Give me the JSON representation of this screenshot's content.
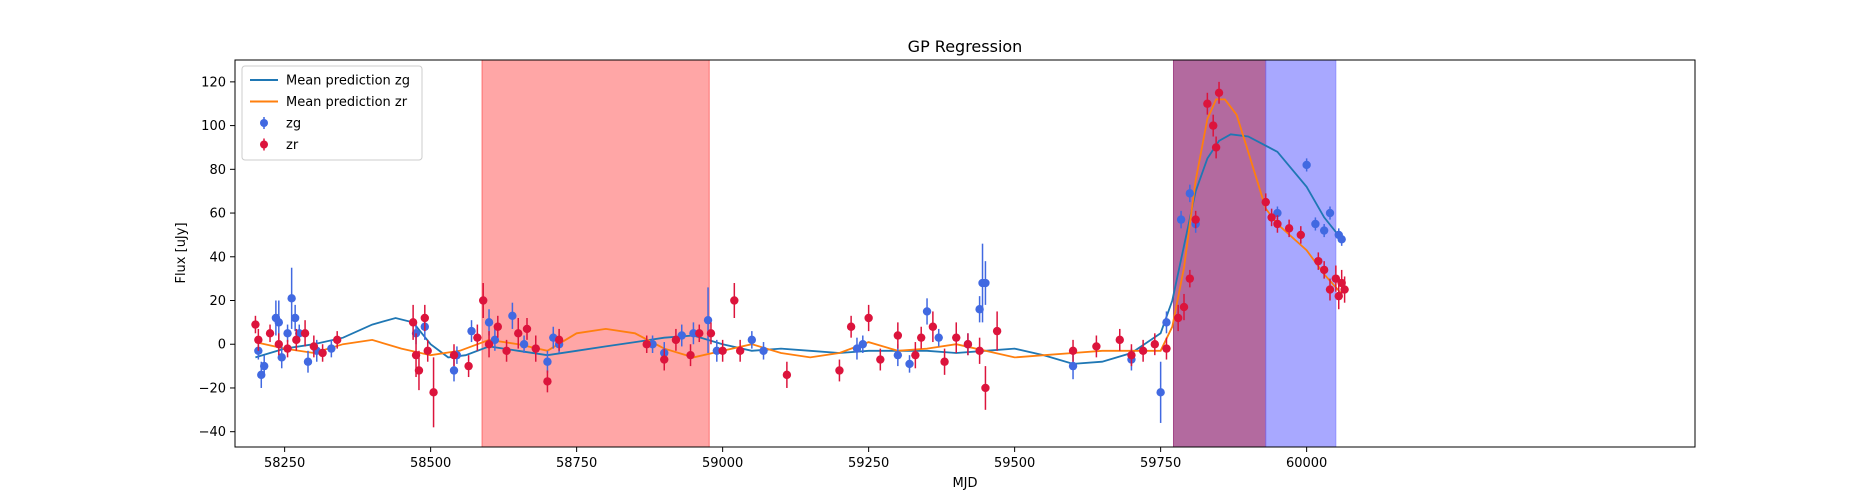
{
  "chart_data": {
    "type": "scatter",
    "title": "GP Regression",
    "xlabel": "MJD",
    "ylabel": "Flux [uJy]",
    "xlim": [
      58165,
      60665
    ],
    "ylim": [
      -47,
      130
    ],
    "xticks": [
      58250,
      58500,
      58750,
      59000,
      59250,
      59500,
      59750,
      60000
    ],
    "yticks": [
      -40,
      -20,
      0,
      20,
      40,
      60,
      80,
      100,
      120
    ],
    "legend_position": "top-left",
    "colors": {
      "zg": "#4169e1",
      "zr": "#dc143c",
      "mean_zg": "#1f77b4",
      "mean_zr": "#ff7f0e"
    },
    "shaded_regions": [
      {
        "x0": 58588,
        "x1": 58977,
        "color": "#ff4d4d",
        "opacity": 0.5
      },
      {
        "x0": 59772,
        "x1": 59930,
        "color": "#8b1a6b",
        "opacity": 0.65
      },
      {
        "x0": 59930,
        "x1": 60050,
        "color": "#7f7fff",
        "opacity": 0.68
      }
    ],
    "legend": [
      {
        "label": "Mean prediction zg",
        "kind": "line",
        "series": "mean_zg"
      },
      {
        "label": "Mean prediction zr",
        "kind": "line",
        "series": "mean_zr"
      },
      {
        "label": "zg",
        "kind": "errorbar",
        "series": "zg"
      },
      {
        "label": "zr",
        "kind": "errorbar",
        "series": "zr"
      }
    ],
    "series": [
      {
        "name": "Mean prediction zg",
        "kind": "line",
        "key": "mean_zg",
        "x": [
          58200,
          58250,
          58300,
          58350,
          58400,
          58440,
          58470,
          58500,
          58530,
          58560,
          58600,
          58650,
          58700,
          58750,
          58800,
          58850,
          58900,
          58950,
          59000,
          59050,
          59100,
          59150,
          59200,
          59250,
          59300,
          59350,
          59400,
          59450,
          59500,
          59550,
          59600,
          59650,
          59700,
          59750,
          59770,
          59790,
          59810,
          59830,
          59850,
          59870,
          59900,
          59950,
          60000,
          60030,
          60060
        ],
        "y": [
          -6,
          -2,
          0,
          3,
          9,
          12,
          10,
          0,
          -6,
          -5,
          -1,
          -3,
          -5,
          -3,
          -1,
          1,
          3,
          4,
          0,
          -3,
          -2,
          -3,
          -4,
          -3,
          -3,
          -3,
          -4,
          -3,
          -2,
          -5,
          -9,
          -8,
          -4,
          5,
          20,
          45,
          70,
          85,
          93,
          96,
          95,
          88,
          72,
          58,
          48
        ]
      },
      {
        "name": "Mean prediction zr",
        "kind": "line",
        "key": "mean_zr",
        "x": [
          58200,
          58250,
          58300,
          58350,
          58400,
          58450,
          58500,
          58550,
          58600,
          58650,
          58700,
          58750,
          58800,
          58850,
          58900,
          58950,
          59000,
          59050,
          59100,
          59150,
          59200,
          59250,
          59300,
          59350,
          59400,
          59450,
          59500,
          59550,
          59600,
          59650,
          59700,
          59750,
          59770,
          59790,
          59810,
          59830,
          59845,
          59860,
          59880,
          59900,
          59930,
          59950,
          60000,
          60030,
          60060
        ],
        "y": [
          1,
          -2,
          -4,
          0,
          2,
          -2,
          -5,
          -3,
          2,
          0,
          -3,
          5,
          7,
          5,
          -2,
          -6,
          -3,
          0,
          -4,
          -6,
          -4,
          1,
          -3,
          -2,
          0,
          -3,
          -6,
          -5,
          -4,
          -3,
          -3,
          -3,
          8,
          35,
          75,
          103,
          112,
          112,
          105,
          88,
          62,
          55,
          43,
          32,
          23
        ]
      },
      {
        "name": "zg",
        "kind": "errorbar",
        "key": "zg",
        "x": [
          58205,
          58210,
          58215,
          58235,
          58240,
          58245,
          58255,
          58262,
          58268,
          58275,
          58290,
          58305,
          58330,
          58475,
          58490,
          58540,
          58545,
          58570,
          58600,
          58610,
          58640,
          58660,
          58700,
          58710,
          58720,
          58880,
          58900,
          58930,
          58950,
          58975,
          58990,
          59050,
          59070,
          59230,
          59240,
          59300,
          59320,
          59350,
          59370,
          59420,
          59440,
          59445,
          59450,
          59600,
          59700,
          59750,
          59760,
          59785,
          59800,
          59810,
          59950,
          60000,
          60015,
          60030,
          60040,
          60055,
          60060
        ],
        "y": [
          -3,
          -14,
          -10,
          12,
          10,
          -6,
          5,
          21,
          12,
          5,
          -8,
          -3,
          -2,
          5,
          8,
          -12,
          -5,
          6,
          10,
          2,
          13,
          0,
          -8,
          3,
          0,
          0,
          -4,
          4,
          5,
          11,
          -3,
          2,
          -3,
          -2,
          0,
          -5,
          -9,
          15,
          3,
          0,
          16,
          28,
          28,
          -10,
          -7,
          -22,
          10,
          57,
          69,
          55,
          60,
          82,
          55,
          52,
          60,
          50,
          48
        ],
        "err": [
          4,
          6,
          5,
          8,
          10,
          5,
          4,
          14,
          6,
          4,
          5,
          5,
          4,
          5,
          6,
          5,
          4,
          5,
          6,
          5,
          6,
          4,
          5,
          5,
          4,
          4,
          5,
          5,
          5,
          15,
          5,
          4,
          4,
          5,
          4,
          5,
          4,
          6,
          4,
          5,
          6,
          18,
          10,
          6,
          5,
          14,
          5,
          4,
          4,
          4,
          3,
          3,
          3,
          3,
          3,
          3,
          3
        ]
      },
      {
        "name": "zr",
        "kind": "errorbar",
        "key": "zr",
        "x": [
          58200,
          58205,
          58225,
          58240,
          58255,
          58270,
          58285,
          58300,
          58315,
          58340,
          58470,
          58475,
          58480,
          58490,
          58495,
          58505,
          58540,
          58565,
          58580,
          58590,
          58600,
          58615,
          58630,
          58650,
          58665,
          58680,
          58700,
          58720,
          58870,
          58900,
          58920,
          58945,
          58960,
          58980,
          59000,
          59020,
          59030,
          59110,
          59200,
          59220,
          59250,
          59270,
          59300,
          59330,
          59340,
          59360,
          59380,
          59400,
          59420,
          59440,
          59450,
          59470,
          59600,
          59640,
          59680,
          59700,
          59720,
          59740,
          59760,
          59780,
          59790,
          59800,
          59810,
          59830,
          59840,
          59845,
          59850,
          59930,
          59940,
          59950,
          59970,
          59990,
          60020,
          60030,
          60040,
          60050,
          60055,
          60060,
          60065
        ],
        "y": [
          9,
          2,
          5,
          0,
          -2,
          2,
          5,
          -1,
          -4,
          2,
          10,
          -5,
          -12,
          12,
          -3,
          -22,
          -5,
          -10,
          3,
          20,
          0,
          8,
          -3,
          5,
          7,
          -2,
          -17,
          2,
          0,
          -7,
          2,
          -5,
          5,
          5,
          -3,
          20,
          -3,
          -14,
          -12,
          8,
          12,
          -7,
          4,
          -5,
          3,
          8,
          -8,
          3,
          0,
          -3,
          -20,
          6,
          -3,
          -1,
          2,
          -5,
          -3,
          0,
          -2,
          12,
          17,
          30,
          57,
          110,
          100,
          90,
          115,
          65,
          58,
          55,
          53,
          50,
          38,
          34,
          25,
          30,
          22,
          28,
          25
        ],
        "err": [
          4,
          5,
          4,
          5,
          4,
          5,
          6,
          5,
          4,
          4,
          8,
          10,
          9,
          6,
          5,
          16,
          5,
          5,
          6,
          8,
          6,
          5,
          5,
          7,
          5,
          6,
          5,
          5,
          4,
          5,
          5,
          5,
          4,
          5,
          5,
          8,
          5,
          6,
          5,
          5,
          6,
          5,
          6,
          6,
          5,
          7,
          6,
          7,
          5,
          6,
          10,
          9,
          5,
          5,
          5,
          5,
          5,
          5,
          5,
          6,
          6,
          4,
          4,
          5,
          5,
          5,
          5,
          4,
          4,
          4,
          4,
          4,
          4,
          4,
          5,
          6,
          6,
          6,
          6
        ]
      }
    ]
  }
}
